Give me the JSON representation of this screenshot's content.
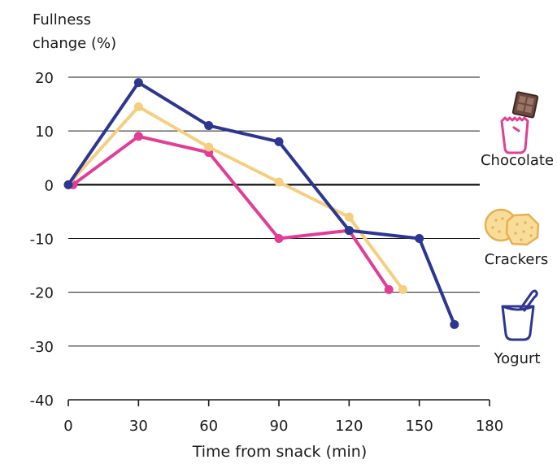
{
  "chart_data": {
    "type": "line",
    "ylabel_lines": [
      "Fullness",
      "change (%)"
    ],
    "xlabel": "Time from snack (min)",
    "xlim": [
      0,
      180
    ],
    "ylim": [
      -40,
      20
    ],
    "x_ticks": [
      "0",
      "30",
      "60",
      "90",
      "120",
      "150",
      "180"
    ],
    "y_ticks": [
      "20",
      "10",
      "0",
      "-10",
      "-20",
      "-30",
      "-40"
    ],
    "grid": true,
    "legend_placement": "right",
    "series": [
      {
        "name": "Chocolate",
        "color": "#e23d96",
        "icon": "chocolate-icon",
        "points": [
          [
            2,
            0
          ],
          [
            30,
            9
          ],
          [
            60,
            6
          ],
          [
            90,
            -10
          ],
          [
            120,
            -8.5
          ],
          [
            137,
            -19.5
          ]
        ]
      },
      {
        "name": "Crackers",
        "color": "#f5cf80",
        "icon": "crackers-icon",
        "points": [
          [
            0,
            0
          ],
          [
            30,
            14.5
          ],
          [
            60,
            7
          ],
          [
            90,
            0.5
          ],
          [
            120,
            -6
          ],
          [
            143,
            -19.5
          ]
        ]
      },
      {
        "name": "Yogurt",
        "color": "#2d3690",
        "icon": "yogurt-icon",
        "points": [
          [
            0,
            0
          ],
          [
            30,
            19
          ],
          [
            60,
            11
          ],
          [
            90,
            8
          ],
          [
            120,
            -8.5
          ],
          [
            150,
            -10
          ],
          [
            165,
            -26
          ]
        ]
      }
    ]
  }
}
